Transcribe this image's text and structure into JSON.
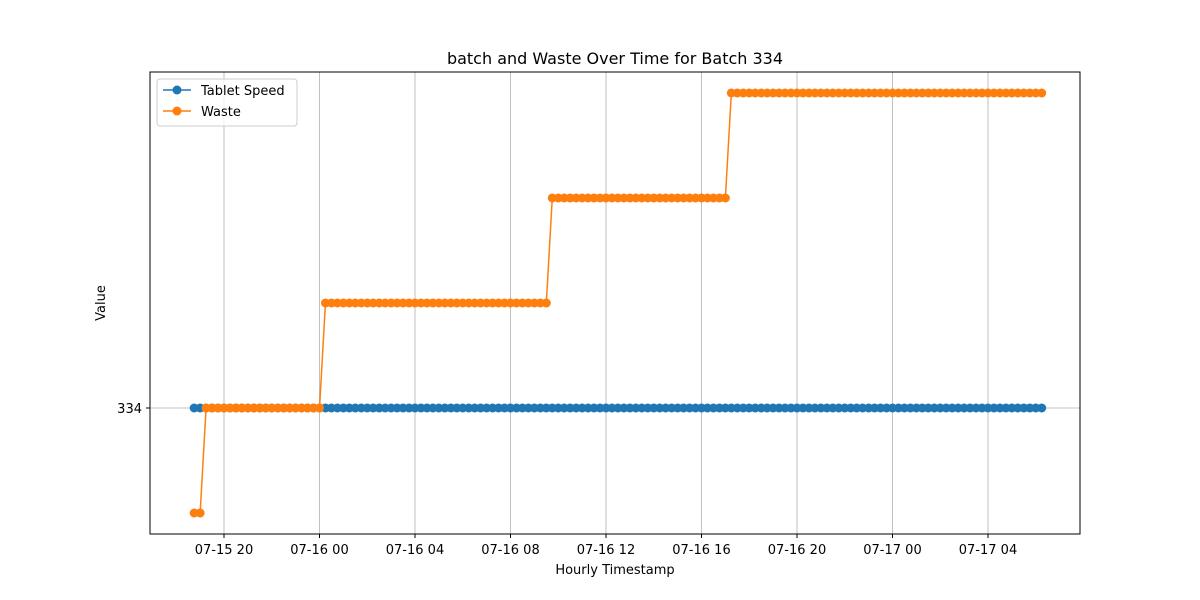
{
  "chart_data": {
    "type": "line",
    "title": "batch and Waste Over Time for Batch 334",
    "xlabel": "Hourly Timestamp",
    "ylabel": "Value",
    "x_ticks": [
      "07-15 20",
      "07-16 00",
      "07-16 04",
      "07-16 08",
      "07-16 12",
      "07-16 16",
      "07-16 20",
      "07-17 00",
      "07-17 04"
    ],
    "y_ticks": [
      "334"
    ],
    "grid": true,
    "legend_position": "top-left",
    "x_start": "2024-07-15 18:45",
    "x_end": "2024-07-17 06:15",
    "x_step_minutes": 15,
    "series": [
      {
        "name": "Tablet Speed",
        "color": "#1f77b4",
        "segments": [
          {
            "from": "2024-07-15 18:45",
            "to": "2024-07-17 06:15",
            "value": 334
          }
        ]
      },
      {
        "name": "Waste",
        "color": "#ff7f0e",
        "segments": [
          {
            "from": "2024-07-15 18:45",
            "to": "2024-07-15 19:00",
            "value": 333
          },
          {
            "from": "2024-07-15 19:15",
            "to": "2024-07-16 00:00",
            "value": 334
          },
          {
            "from": "2024-07-16 00:15",
            "to": "2024-07-16 09:30",
            "value": 335
          },
          {
            "from": "2024-07-16 09:45",
            "to": "2024-07-16 17:00",
            "value": 336
          },
          {
            "from": "2024-07-16 17:15",
            "to": "2024-07-17 06:15",
            "value": 337
          }
        ]
      }
    ]
  }
}
